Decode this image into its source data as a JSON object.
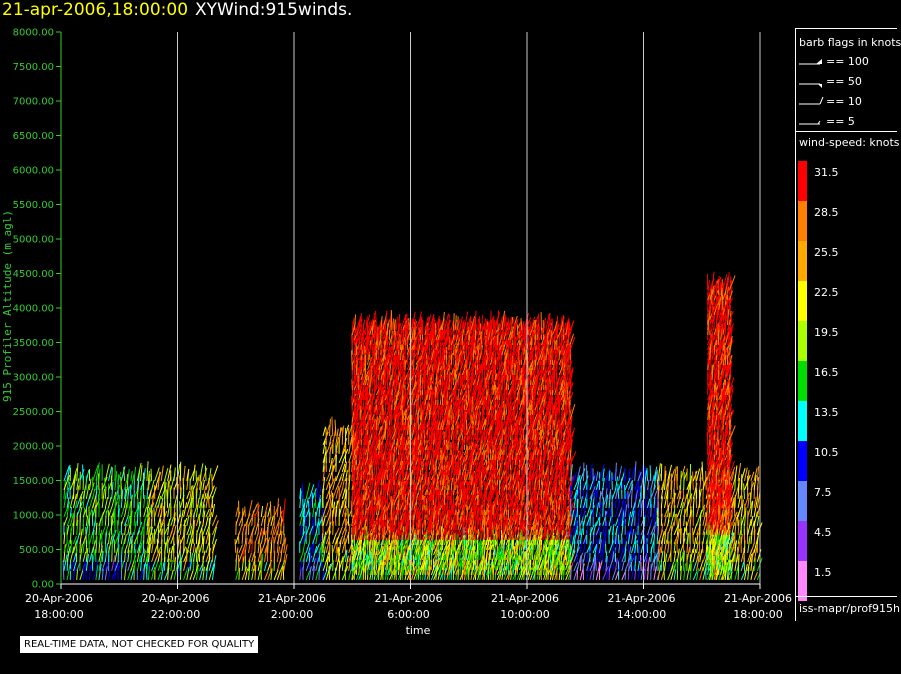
{
  "header": {
    "date_label": "21-apr-2006,18:00:00",
    "product_label": "XYWind:915winds."
  },
  "notice": "REAL-TIME DATA, NOT CHECKED FOR QUALITY",
  "legend": {
    "barb_title": "barb flags in knots",
    "barbs": [
      {
        "label": "== 100"
      },
      {
        "label": "== 50"
      },
      {
        "label": "== 10"
      },
      {
        "label": "== 5"
      }
    ],
    "speed_title": "wind-speed: knots",
    "speed_scale": [
      {
        "label": "31.5",
        "color": "#ff0000"
      },
      {
        "label": "28.5",
        "color": "#ff7f00"
      },
      {
        "label": "25.5",
        "color": "#ffaa00"
      },
      {
        "label": "22.5",
        "color": "#ffff00"
      },
      {
        "label": "19.5",
        "color": "#aaff00"
      },
      {
        "label": "16.5",
        "color": "#00dd00"
      },
      {
        "label": "13.5",
        "color": "#00ffff"
      },
      {
        "label": "10.5",
        "color": "#0000ff"
      },
      {
        "label": "7.5",
        "color": "#6688ff"
      },
      {
        "label": "4.5",
        "color": "#9933ff"
      },
      {
        "label": "1.5",
        "color": "#ff88ff"
      }
    ],
    "footer": "iss-mapr/prof915h"
  },
  "chart_data": {
    "type": "scatter",
    "ylabel": "915 Profiler Altitude (m agl)",
    "xlabel": "time",
    "ylim": [
      0,
      8000
    ],
    "xlim_hours": [
      18,
      42
    ],
    "y_ticks": [
      "0.00",
      "500.00",
      "1000.00",
      "1500.00",
      "2000.00",
      "2500.00",
      "3000.00",
      "3500.00",
      "4000.00",
      "4500.00",
      "5000.00",
      "5500.00",
      "6000.00",
      "6500.00",
      "7000.00",
      "7500.00",
      "8000.00"
    ],
    "x_ticks": [
      {
        "date": "20-Apr-2006",
        "time": "18:00:00"
      },
      {
        "date": "20-Apr-2006",
        "time": "22:00:00"
      },
      {
        "date": "21-Apr-2006",
        "time": "2:00:00"
      },
      {
        "date": "21-Apr-2006",
        "time": "6:00:00"
      },
      {
        "date": "21-Apr-2006",
        "time": "10:00:00"
      },
      {
        "date": "21-Apr-2006",
        "time": "14:00:00"
      },
      {
        "date": "21-Apr-2006",
        "time": "18:00:00"
      }
    ],
    "grid": "vertical",
    "segments": [
      {
        "t_start": 18.1,
        "t_end": 19.3,
        "top_m": 1600,
        "speed_kt": 18
      },
      {
        "t_start": 19.3,
        "t_end": 21.0,
        "top_m": 1600,
        "speed_kt": 17
      },
      {
        "t_start": 21.0,
        "t_end": 23.2,
        "top_m": 1500,
        "speed_kt": 22
      },
      {
        "t_start": 24.0,
        "t_end": 25.7,
        "top_m": 1100,
        "speed_kt": 27
      },
      {
        "t_start": 26.2,
        "t_end": 27.0,
        "top_m": 1300,
        "speed_kt": 14
      },
      {
        "t_start": 27.0,
        "t_end": 28.0,
        "top_m": 2200,
        "speed_kt": 25
      },
      {
        "t_start": 28.0,
        "t_end": 35.5,
        "top_m": 3700,
        "speed_kt": 32
      },
      {
        "t_start": 35.5,
        "t_end": 38.5,
        "top_m": 1600,
        "speed_kt": 11
      },
      {
        "t_start": 38.5,
        "t_end": 42.0,
        "top_m": 1500,
        "speed_kt": 24
      },
      {
        "t_start": 40.2,
        "t_end": 41.0,
        "top_m": 4300,
        "speed_kt": 32
      }
    ]
  }
}
